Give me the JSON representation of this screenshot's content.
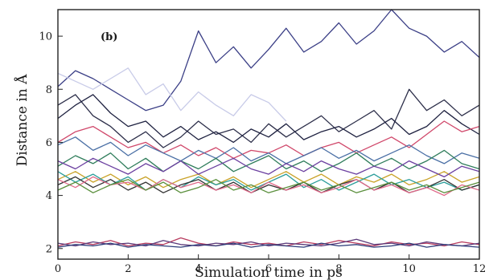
{
  "chart_data": {
    "type": "line",
    "panel_label": "(b)",
    "xlabel": "Simulation time in ps",
    "ylabel": "Distance in Å",
    "xlim": [
      0,
      12
    ],
    "ylim": [
      1.6,
      11.0
    ],
    "x_ticks": [
      0,
      2,
      4,
      6,
      8,
      10,
      12
    ],
    "y_ticks": [
      2,
      4,
      6,
      8,
      10
    ],
    "grid": false,
    "x": [
      0,
      0.5,
      1,
      1.5,
      2,
      2.5,
      3,
      3.5,
      4,
      4.5,
      5,
      5.5,
      6,
      6.5,
      7,
      7.5,
      8,
      8.5,
      9,
      9.5,
      10,
      10.5,
      11,
      11.5,
      12
    ],
    "series": [
      {
        "color": "#3b3f86",
        "values": [
          8.1,
          8.7,
          8.4,
          8.0,
          7.6,
          7.2,
          7.4,
          8.3,
          10.2,
          9.0,
          9.6,
          8.8,
          9.5,
          10.3,
          9.4,
          9.8,
          10.5,
          9.7,
          10.2,
          11.0,
          10.3,
          10.0,
          9.4,
          9.8,
          9.2
        ]
      },
      {
        "color": "#c8cbe8",
        "values": [
          8.6,
          8.3,
          8.0,
          8.4,
          8.8,
          7.8,
          8.2,
          7.2,
          7.9,
          7.4,
          7.0,
          7.8,
          7.5,
          6.8,
          null,
          null,
          null,
          null,
          null,
          null,
          null,
          null,
          null,
          null,
          null
        ]
      },
      {
        "color": "#2d2f4a",
        "values": [
          7.4,
          7.8,
          7.0,
          6.6,
          6.0,
          6.4,
          5.8,
          6.2,
          6.8,
          6.3,
          6.5,
          6.0,
          6.7,
          6.2,
          6.6,
          7.0,
          6.4,
          6.8,
          7.2,
          6.5,
          8.0,
          7.2,
          7.6,
          7.0,
          7.4
        ]
      },
      {
        "color": "#1e2140",
        "values": [
          6.9,
          7.4,
          7.8,
          7.1,
          6.6,
          6.8,
          6.2,
          6.6,
          6.1,
          6.4,
          6.0,
          6.5,
          6.2,
          6.7,
          6.1,
          6.4,
          6.6,
          6.2,
          6.5,
          6.9,
          6.3,
          6.6,
          7.2,
          6.7,
          6.3
        ]
      },
      {
        "color": "#d0476a",
        "values": [
          6.0,
          6.4,
          6.6,
          6.2,
          5.8,
          6.0,
          5.6,
          5.9,
          5.5,
          5.8,
          5.4,
          5.7,
          5.6,
          5.9,
          5.5,
          5.8,
          6.0,
          5.6,
          5.9,
          6.2,
          5.8,
          6.3,
          6.8,
          6.4,
          6.6
        ]
      },
      {
        "color": "#4a6fa5",
        "values": [
          5.9,
          6.2,
          5.7,
          6.0,
          5.5,
          5.9,
          5.6,
          5.3,
          5.7,
          5.4,
          5.8,
          5.3,
          5.6,
          5.2,
          5.5,
          5.8,
          5.4,
          5.7,
          5.3,
          5.6,
          5.9,
          5.5,
          5.2,
          5.6,
          5.4
        ]
      },
      {
        "color": "#2f7d5b",
        "values": [
          5.1,
          5.5,
          5.2,
          5.6,
          5.0,
          5.4,
          4.9,
          5.3,
          5.0,
          5.4,
          4.9,
          5.2,
          5.5,
          5.0,
          5.3,
          4.9,
          5.2,
          5.6,
          5.1,
          5.4,
          5.0,
          5.3,
          5.7,
          5.2,
          5.0
        ]
      },
      {
        "color": "#c9a227",
        "values": [
          4.6,
          4.9,
          4.5,
          4.8,
          4.4,
          4.7,
          4.3,
          4.6,
          4.8,
          4.4,
          4.7,
          4.3,
          4.6,
          4.9,
          4.5,
          4.8,
          4.4,
          4.7,
          4.5,
          4.8,
          4.4,
          4.6,
          4.9,
          4.5,
          4.7
        ]
      },
      {
        "color": "#2a9d9a",
        "values": [
          4.9,
          4.5,
          4.8,
          4.4,
          4.7,
          4.2,
          4.6,
          4.3,
          4.7,
          4.4,
          4.6,
          4.2,
          4.5,
          4.8,
          4.3,
          4.6,
          4.2,
          4.5,
          4.8,
          4.4,
          4.6,
          4.3,
          4.5,
          4.2,
          4.4
        ]
      },
      {
        "color": "#6b3fa0",
        "values": [
          5.3,
          5.0,
          5.4,
          5.1,
          4.8,
          5.2,
          4.9,
          5.3,
          4.8,
          5.1,
          5.4,
          5.0,
          4.8,
          5.2,
          4.9,
          5.3,
          5.0,
          4.8,
          5.1,
          4.9,
          5.3,
          5.0,
          4.7,
          5.1,
          4.9
        ]
      },
      {
        "color": "#333333",
        "values": [
          4.4,
          4.7,
          4.3,
          4.6,
          4.2,
          4.5,
          4.1,
          4.4,
          4.6,
          4.2,
          4.5,
          4.1,
          4.4,
          4.2,
          4.5,
          4.1,
          4.4,
          4.6,
          4.2,
          4.5,
          4.1,
          4.3,
          4.6,
          4.2,
          4.4
        ]
      },
      {
        "color": "#e06a8a",
        "values": [
          4.6,
          4.3,
          4.7,
          4.4,
          4.5,
          4.2,
          4.6,
          4.3,
          4.5,
          4.2,
          4.4,
          4.1,
          4.5,
          4.2,
          4.4,
          4.1,
          4.3,
          4.6,
          4.2,
          4.4,
          4.1,
          4.3,
          4.0,
          4.4,
          4.2
        ]
      },
      {
        "color": "#5a8f3c",
        "values": [
          4.2,
          4.5,
          4.1,
          4.4,
          4.6,
          4.2,
          4.5,
          4.1,
          4.3,
          4.6,
          4.2,
          4.4,
          4.1,
          4.3,
          4.5,
          4.2,
          4.4,
          4.1,
          4.3,
          4.5,
          4.2,
          4.4,
          4.1,
          4.3,
          4.5
        ]
      },
      {
        "color": "#b83b5e",
        "values": [
          2.1,
          2.25,
          2.15,
          2.3,
          2.1,
          2.2,
          2.15,
          2.4,
          2.2,
          2.1,
          2.25,
          2.15,
          2.2,
          2.1,
          2.25,
          2.15,
          2.3,
          2.2,
          2.1,
          2.25,
          2.15,
          2.2,
          2.1,
          2.25,
          2.15
        ]
      },
      {
        "color": "#5b3a7a",
        "values": [
          2.2,
          2.1,
          2.25,
          2.15,
          2.2,
          2.1,
          2.3,
          2.15,
          2.1,
          2.2,
          2.15,
          2.25,
          2.1,
          2.2,
          2.15,
          2.1,
          2.2,
          2.35,
          2.15,
          2.2,
          2.1,
          2.25,
          2.15,
          2.1,
          2.2
        ]
      },
      {
        "color": "#2e3d7a",
        "values": [
          2.05,
          2.15,
          2.1,
          2.2,
          2.05,
          2.15,
          2.1,
          2.05,
          2.15,
          2.1,
          2.2,
          2.05,
          2.15,
          2.1,
          2.05,
          2.2,
          2.1,
          2.15,
          2.05,
          2.1,
          2.2,
          2.05,
          2.15,
          2.1,
          2.05
        ]
      }
    ]
  }
}
